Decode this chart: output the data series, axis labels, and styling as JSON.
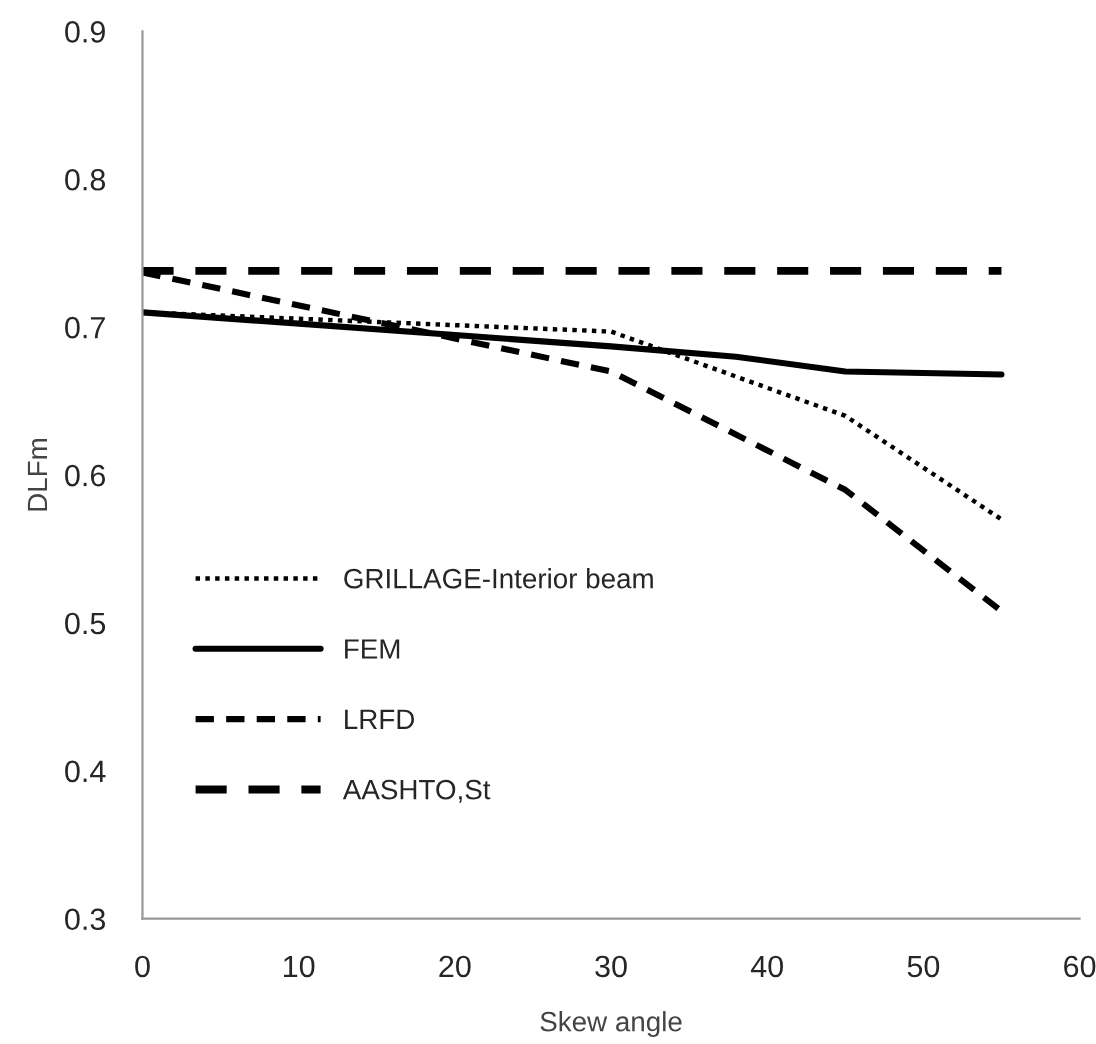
{
  "chart_data": {
    "type": "line",
    "xlabel": "Skew angle",
    "ylabel": "DLFm",
    "xlim": [
      0,
      60
    ],
    "xticks": [
      0,
      10,
      20,
      30,
      40,
      50,
      60
    ],
    "ylim": [
      0.3,
      0.9
    ],
    "yticks": [
      0.3,
      0.4,
      0.5,
      0.6,
      0.7,
      0.8,
      0.9
    ],
    "grid": false,
    "legend": "bottom left",
    "marker": "none",
    "series": [
      {
        "name": "GRILLAGE-Interior beam",
        "color": "#000000",
        "line_style": "dotted",
        "x": [
          0,
          30,
          45,
          55
        ],
        "values": [
          0.71,
          0.697,
          0.64,
          0.57
        ]
      },
      {
        "name": "FEM",
        "color": "#000000",
        "line_style": "solid",
        "x": [
          0,
          30,
          38,
          45,
          55
        ],
        "values": [
          0.71,
          0.687,
          0.68,
          0.67,
          0.668
        ]
      },
      {
        "name": "LRFD",
        "color": "#000000",
        "line_style": "dashed",
        "x": [
          0,
          30,
          45,
          55
        ],
        "values": [
          0.737,
          0.67,
          0.59,
          0.508
        ]
      },
      {
        "name": "AASHTO,St",
        "color": "#000000",
        "line_style": "dashed",
        "x": [
          0,
          55
        ],
        "values": [
          0.738,
          0.738
        ]
      }
    ]
  }
}
